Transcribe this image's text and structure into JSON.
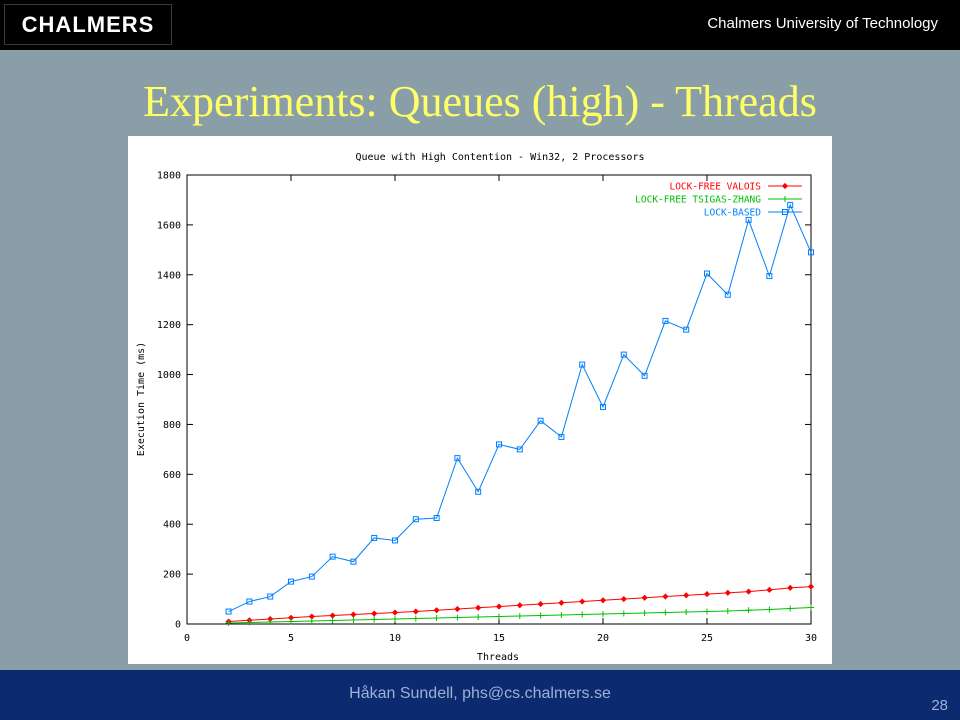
{
  "header": {
    "logo_text": "CHALMERS",
    "university": "Chalmers University of Technology"
  },
  "slide": {
    "title": "Experiments: Queues (high) - Threads"
  },
  "footer": {
    "author": "Håkan Sundell, phs@cs.chalmers.se",
    "page_number": "28"
  },
  "chart_data": {
    "type": "line",
    "title": "Queue with High Contention - Win32, 2 Processors",
    "xlabel": "Threads",
    "ylabel": "Execution Time (ms)",
    "xlim": [
      0,
      30
    ],
    "ylim": [
      0,
      1800
    ],
    "xticks": [
      0,
      5,
      10,
      15,
      20,
      25,
      30
    ],
    "yticks": [
      0,
      200,
      400,
      600,
      800,
      1000,
      1200,
      1400,
      1600,
      1800
    ],
    "legend_position": "top-right",
    "grid": false,
    "x": [
      2,
      3,
      4,
      5,
      6,
      7,
      8,
      9,
      10,
      11,
      12,
      13,
      14,
      15,
      16,
      17,
      18,
      19,
      20,
      21,
      22,
      23,
      24,
      25,
      26,
      27,
      28,
      29,
      30
    ],
    "series": [
      {
        "name": "LOCK-FREE VALOIS",
        "color": "#ff0000",
        "marker": "diamond",
        "values": [
          10,
          15,
          20,
          25,
          30,
          34,
          38,
          42,
          46,
          50,
          55,
          60,
          65,
          70,
          75,
          80,
          85,
          90,
          95,
          100,
          105,
          110,
          115,
          120,
          125,
          130,
          137,
          145,
          150
        ]
      },
      {
        "name": "LOCK-FREE TSIGAS-ZHANG",
        "color": "#00c000",
        "marker": "plus",
        "values": [
          4,
          6,
          8,
          10,
          12,
          14,
          16,
          18,
          20,
          22,
          24,
          26,
          28,
          30,
          32,
          34,
          36,
          38,
          40,
          42,
          44,
          46,
          48,
          50,
          52,
          55,
          58,
          62,
          66
        ]
      },
      {
        "name": "LOCK-BASED",
        "color": "#0080ff",
        "marker": "square",
        "values": [
          50,
          90,
          110,
          170,
          190,
          270,
          250,
          345,
          335,
          420,
          425,
          665,
          530,
          720,
          700,
          815,
          750,
          1040,
          870,
          1080,
          995,
          1215,
          1180,
          1405,
          1320,
          1620,
          1395,
          1680,
          1490
        ]
      }
    ]
  }
}
